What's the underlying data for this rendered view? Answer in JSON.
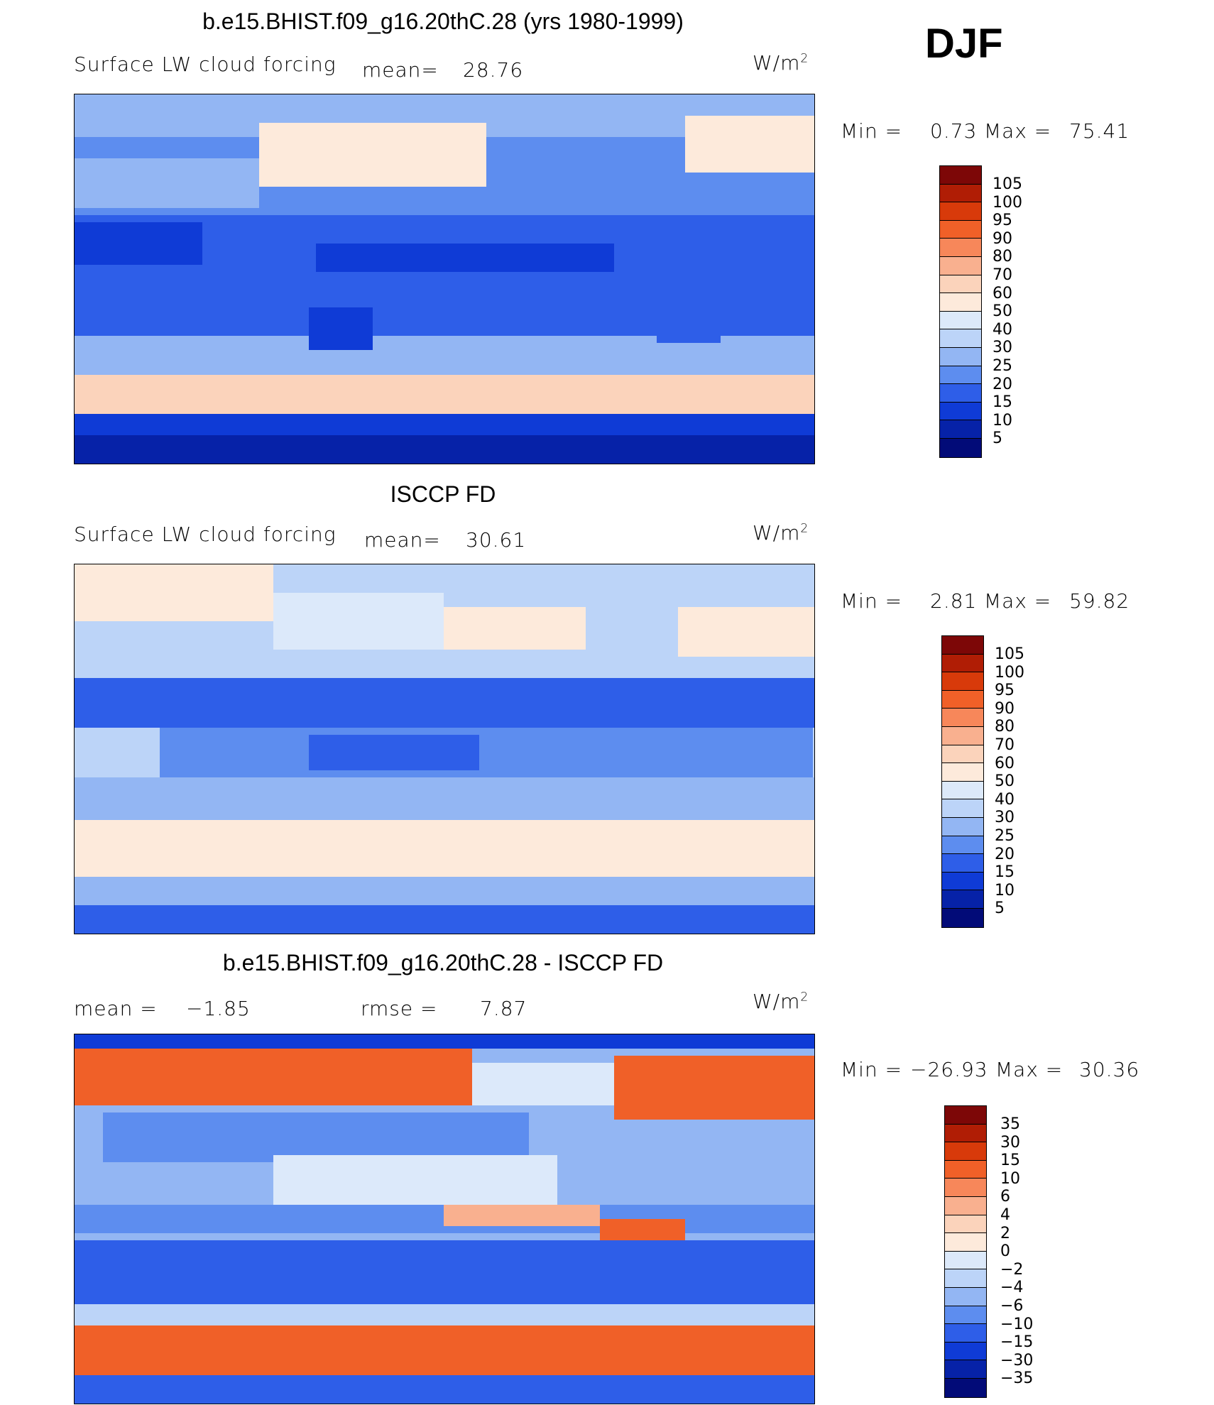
{
  "season": "DJF",
  "units": "W/m",
  "units_sup": "2",
  "panels": [
    {
      "title": "b.e15.BHIST.f09_g16.20thC.28 (yrs 1980-1999)",
      "variable": "Surface LW cloud forcing",
      "mean_label": "mean=",
      "mean": "28.76",
      "min_label": "Min =",
      "min": "0.73",
      "max_label": "Max =",
      "max": "75.41",
      "levels": [
        "105",
        "100",
        "95",
        "90",
        "80",
        "70",
        "60",
        "50",
        "40",
        "30",
        "25",
        "20",
        "15",
        "10",
        "5"
      ],
      "colors": [
        "#7d0707",
        "#b01d05",
        "#d83a0a",
        "#f06028",
        "#f7875a",
        "#f9b08f",
        "#fbd3bb",
        "#fdeadb",
        "#dce9fa",
        "#bcd4f8",
        "#93b6f3",
        "#5d8def",
        "#2e5ee8",
        "#0f3bd6",
        "#0622a8",
        "#020b78"
      ]
    },
    {
      "title": "ISCCP FD",
      "variable": "Surface LW cloud forcing",
      "mean_label": "mean=",
      "mean": "30.61",
      "min_label": "Min =",
      "min": "2.81",
      "max_label": "Max =",
      "max": "59.82",
      "levels": [
        "105",
        "100",
        "95",
        "90",
        "80",
        "70",
        "60",
        "50",
        "40",
        "30",
        "25",
        "20",
        "15",
        "10",
        "5"
      ],
      "colors": [
        "#7d0707",
        "#b01d05",
        "#d83a0a",
        "#f06028",
        "#f7875a",
        "#f9b08f",
        "#fbd3bb",
        "#fdeadb",
        "#dce9fa",
        "#bcd4f8",
        "#93b6f3",
        "#5d8def",
        "#2e5ee8",
        "#0f3bd6",
        "#0622a8",
        "#020b78"
      ]
    },
    {
      "title": "b.e15.BHIST.f09_g16.20thC.28 - ISCCP FD",
      "mean_label": "mean =",
      "mean": "−1.85",
      "rmse_label": "rmse =",
      "rmse": "7.87",
      "min_label": "Min =",
      "min": "−26.93",
      "max_label": "Max =",
      "max": "30.36",
      "levels": [
        "35",
        "30",
        "15",
        "10",
        "6",
        "4",
        "2",
        "0",
        "−2",
        "−4",
        "−6",
        "−10",
        "−15",
        "−30",
        "−35"
      ],
      "colors": [
        "#7d0707",
        "#b01d05",
        "#d83a0a",
        "#f06028",
        "#f7875a",
        "#f9b08f",
        "#fbd3bb",
        "#fdeadb",
        "#dce9fa",
        "#bcd4f8",
        "#93b6f3",
        "#5d8def",
        "#2e5ee8",
        "#0f3bd6",
        "#0622a8",
        "#020b78"
      ]
    }
  ]
}
